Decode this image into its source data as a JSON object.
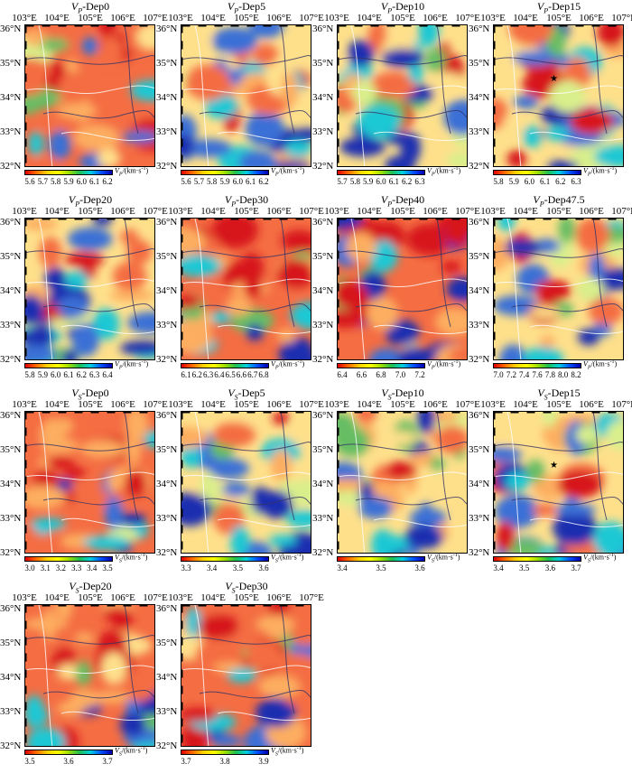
{
  "lon_labels": [
    "103°E",
    "104°E",
    "105°E",
    "106°E",
    "107°E"
  ],
  "lat_labels": [
    "36°N",
    "35°N",
    "34°N",
    "33°N",
    "32°N"
  ],
  "panels": [
    {
      "v": "V",
      "sub": "P",
      "depth": "-Dep0",
      "unit_sub": "P",
      "unit": "/(km·s",
      "unit_exp": "-1",
      "unit_close": ")",
      "ticks": [
        "5.6",
        "5.7",
        "5.8",
        "5.9",
        "6.0",
        "6.1",
        "6.2"
      ],
      "palette": "warm",
      "star": false
    },
    {
      "v": "V",
      "sub": "P",
      "depth": "-Dep5",
      "unit_sub": "P",
      "unit": "/(km·s",
      "unit_exp": "-1",
      "unit_close": ")",
      "ticks": [
        "5.6",
        "5.7",
        "5.8",
        "5.9",
        "6.0",
        "6.1",
        "6.2"
      ],
      "palette": "mixed",
      "star": false
    },
    {
      "v": "V",
      "sub": "P",
      "depth": "-Dep10",
      "unit_sub": "P",
      "unit": "/(km·s",
      "unit_exp": "-1",
      "unit_close": ")",
      "ticks": [
        "5.7",
        "5.8",
        "5.9",
        "6.0",
        "6.1",
        "6.2",
        "6.3"
      ],
      "palette": "mixed",
      "star": false
    },
    {
      "v": "V",
      "sub": "P",
      "depth": "-Dep15",
      "unit_sub": "P",
      "unit": "/(km·s",
      "unit_exp": "-1",
      "unit_close": ")",
      "ticks": [
        "5.8",
        "5.9",
        "6.0",
        "6.1",
        "6.2",
        "6.3"
      ],
      "palette": "mixed",
      "star": true
    },
    {
      "v": "V",
      "sub": "P",
      "depth": "-Dep20",
      "unit_sub": "P",
      "unit": "/(km·s",
      "unit_exp": "-1",
      "unit_close": ")",
      "ticks": [
        "5.8",
        "5.9",
        "6.0",
        "6.1",
        "6.2",
        "6.3",
        "6.4"
      ],
      "palette": "mixed",
      "star": false
    },
    {
      "v": "V",
      "sub": "P",
      "depth": "-Dep30",
      "unit_sub": "P",
      "unit": "/(km·s",
      "unit_exp": "-1",
      "unit_close": ")",
      "ticks": [
        "6.1",
        "6.2",
        "6.3",
        "6.4",
        "6.5",
        "6.6",
        "6.7",
        "6.8"
      ],
      "palette": "warm",
      "star": false
    },
    {
      "v": "V",
      "sub": "P",
      "depth": "-Dep40",
      "unit_sub": "P",
      "unit": "/(km·s",
      "unit_exp": "-1",
      "unit_close": ")",
      "ticks": [
        "6.4",
        "6.6",
        "6.8",
        "7.0",
        "7.2"
      ],
      "palette": "warm",
      "star": false
    },
    {
      "v": "V",
      "sub": "P",
      "depth": "-Dep47.5",
      "unit_sub": "P",
      "unit": "/(km·s",
      "unit_exp": "-1",
      "unit_close": ")",
      "ticks": [
        "7.0",
        "7.2",
        "7.4",
        "7.6",
        "7.8",
        "8.0",
        "8.2"
      ],
      "palette": "mixed",
      "star": false
    },
    {
      "v": "V",
      "sub": "S",
      "depth": "-Dep0",
      "unit_sub": "S",
      "unit": "/(km·s",
      "unit_exp": "-1",
      "unit_close": ")",
      "ticks": [
        "3.0",
        "3.1",
        "3.2",
        "3.3",
        "3.4",
        "3.5"
      ],
      "palette": "warm",
      "star": false
    },
    {
      "v": "V",
      "sub": "S",
      "depth": "-Dep5",
      "unit_sub": "S",
      "unit": "/(km·s",
      "unit_exp": "-1",
      "unit_close": ")",
      "ticks": [
        "3.3",
        "3.4",
        "3.5",
        "3.6"
      ],
      "palette": "mixed",
      "star": false
    },
    {
      "v": "V",
      "sub": "S",
      "depth": "-Dep10",
      "unit_sub": "S",
      "unit": "/(km·s",
      "unit_exp": "-1",
      "unit_close": ")",
      "ticks": [
        "3.4",
        "3.5",
        "3.6"
      ],
      "palette": "mixed",
      "star": false
    },
    {
      "v": "V",
      "sub": "S",
      "depth": "-Dep15",
      "unit_sub": "S",
      "unit": "/(km·s",
      "unit_exp": "-1",
      "unit_close": ")",
      "ticks": [
        "3.4",
        "3.5",
        "3.6",
        "3.7"
      ],
      "palette": "mixed",
      "star": true
    },
    {
      "v": "V",
      "sub": "S",
      "depth": "-Dep20",
      "unit_sub": "S",
      "unit": "/(km·s",
      "unit_exp": "-1",
      "unit_close": ")",
      "ticks": [
        "3.5",
        "3.6",
        "3.7"
      ],
      "palette": "warm",
      "star": false
    },
    {
      "v": "V",
      "sub": "S",
      "depth": "-Dep30",
      "unit_sub": "S",
      "unit": "/(km·s",
      "unit_exp": "-1",
      "unit_close": ")",
      "ticks": [
        "3.7",
        "3.8",
        "3.9"
      ],
      "palette": "warm",
      "star": false
    }
  ]
}
